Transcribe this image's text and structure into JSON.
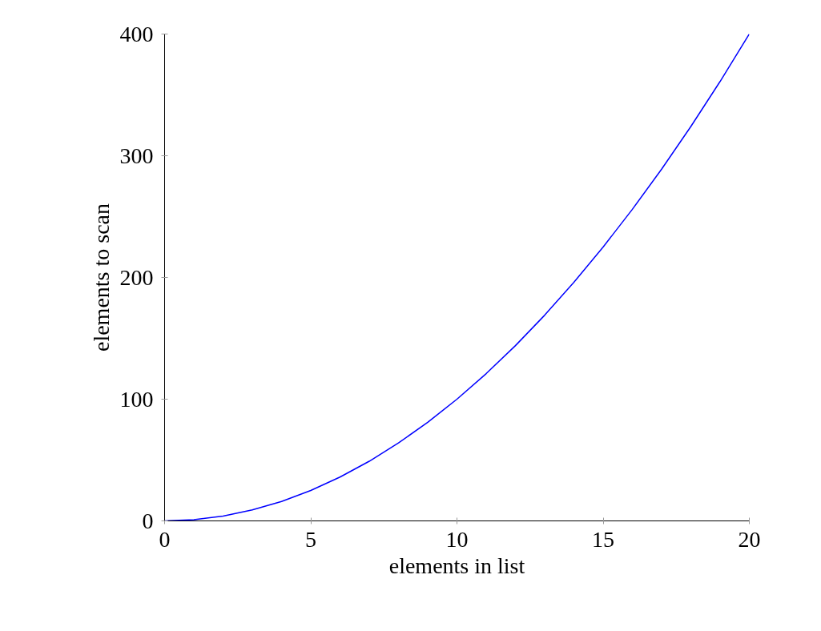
{
  "chart_data": {
    "type": "line",
    "xlabel": "elements in list",
    "ylabel": "elements to scan",
    "x": [
      0,
      1,
      2,
      3,
      4,
      5,
      6,
      7,
      8,
      9,
      10,
      11,
      12,
      13,
      14,
      15,
      16,
      17,
      18,
      19,
      20
    ],
    "series": [
      {
        "color": "#0000ff",
        "values": [
          0,
          1,
          4,
          9,
          16,
          25,
          36,
          49,
          64,
          81,
          100,
          121,
          144,
          169,
          196,
          225,
          256,
          289,
          324,
          361,
          400
        ]
      }
    ],
    "xlim": [
      0,
      20
    ],
    "ylim": [
      0,
      400
    ],
    "xticks": [
      0,
      5,
      10,
      15,
      20
    ],
    "yticks": [
      0,
      100,
      200,
      300,
      400
    ],
    "marker": "none",
    "line_style": "solid"
  }
}
